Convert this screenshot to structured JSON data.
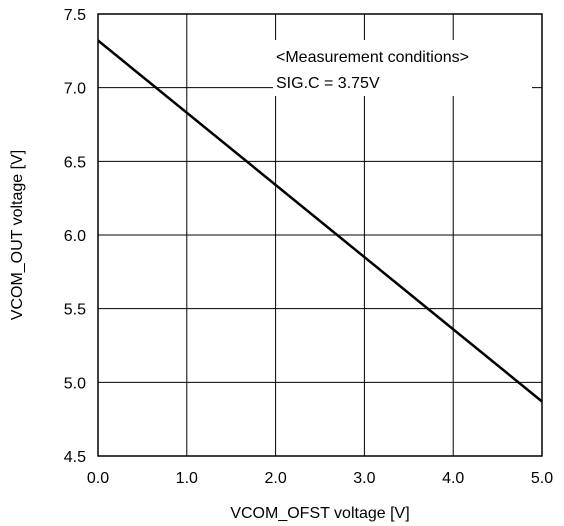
{
  "chart_data": {
    "type": "line",
    "title": "",
    "xlabel": "VCOM_OFST voltage [V]",
    "ylabel": "VCOM_OUT voltage [V]",
    "xlim": [
      0.0,
      5.0
    ],
    "ylim": [
      4.5,
      7.5
    ],
    "x_ticks": [
      "0.0",
      "1.0",
      "2.0",
      "3.0",
      "4.0",
      "5.0"
    ],
    "y_ticks": [
      "4.5",
      "5.0",
      "5.5",
      "6.0",
      "6.5",
      "7.0",
      "7.5"
    ],
    "grid": true,
    "series": [
      {
        "x": [
          0.0,
          5.0
        ],
        "y": [
          7.32,
          4.87
        ]
      }
    ],
    "annotation": {
      "line1": "<Measurement conditions>",
      "line2": "SIG.C = 3.75V"
    }
  }
}
